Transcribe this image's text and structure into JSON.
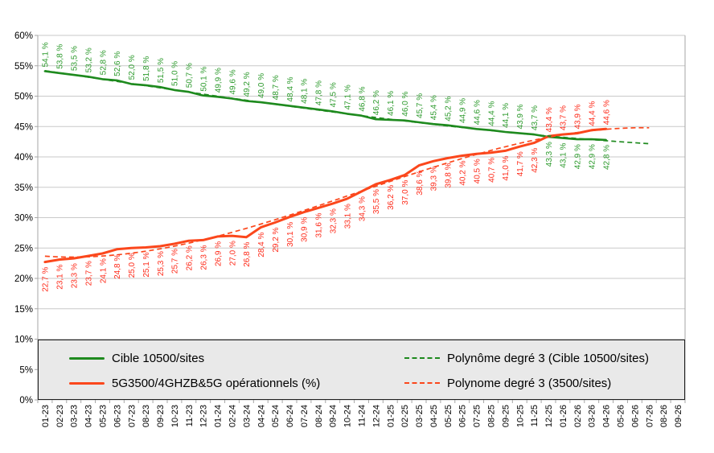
{
  "chart_data": {
    "type": "line",
    "title": "",
    "categories": [
      "01-23",
      "02-23",
      "03-23",
      "04-23",
      "05-23",
      "06-23",
      "07-23",
      "08-23",
      "09-23",
      "10-23",
      "11-23",
      "12-23",
      "01-24",
      "02-24",
      "03-24",
      "04-24",
      "05-24",
      "06-24",
      "07-24",
      "08-24",
      "09-24",
      "10-24",
      "11-24",
      "12-24",
      "01-25",
      "02-25",
      "03-25",
      "04-25",
      "05-25",
      "06-25",
      "07-25",
      "08-25",
      "09-25",
      "10-25",
      "11-25",
      "12-25",
      "01-26",
      "02-26",
      "03-26",
      "04-26",
      "05-26",
      "06-26",
      "07-26",
      "08-26",
      "09-26"
    ],
    "series": [
      {
        "name": "Cible 10500/sites",
        "color": "#1e8a1e",
        "label_color": "#2c9a2c",
        "stroke_width": 2.6,
        "label_side_start": "above",
        "label_flip_index": 35,
        "values": [
          54.1,
          53.8,
          53.5,
          53.2,
          52.8,
          52.6,
          52.0,
          51.8,
          51.5,
          51.0,
          50.7,
          50.1,
          49.9,
          49.6,
          49.2,
          49.0,
          48.7,
          48.4,
          48.1,
          47.8,
          47.5,
          47.1,
          46.8,
          46.2,
          46.1,
          46.0,
          45.7,
          45.4,
          45.2,
          44.9,
          44.6,
          44.4,
          44.1,
          43.9,
          43.7,
          43.3,
          43.1,
          42.9,
          42.9,
          42.8
        ]
      },
      {
        "name": "5G3500/4GHZB&5G opérationnels (%)",
        "color": "#fb471c",
        "label_color": "#fe2a19",
        "stroke_width": 3,
        "label_side_start": "below",
        "label_flip_index": 35,
        "values": [
          22.7,
          23.1,
          23.3,
          23.7,
          24.1,
          24.8,
          25.0,
          25.1,
          25.3,
          25.7,
          26.2,
          26.3,
          26.9,
          27.0,
          26.8,
          28.4,
          29.2,
          30.1,
          30.9,
          31.6,
          32.3,
          33.1,
          34.3,
          35.5,
          36.2,
          37.0,
          38.6,
          39.3,
          39.8,
          40.2,
          40.5,
          40.7,
          41.0,
          41.7,
          42.3,
          43.4,
          43.7,
          43.9,
          44.4,
          44.6
        ]
      }
    ],
    "trends": [
      {
        "name": "Polynôme degré 3 (Cible 10500/sites)",
        "color": "#1e8a1e",
        "source_series": 0,
        "degree": 3,
        "extend_to_index": 42
      },
      {
        "name": "Polynome degré 3 (3500/sites)",
        "color": "#fb471c",
        "source_series": 1,
        "degree": 3,
        "extend_to_index": 42
      }
    ],
    "ylim": [
      0,
      60
    ],
    "ytick_step": 5,
    "ytick_labels": [
      "0%",
      "5%",
      "10%",
      "15%",
      "20%",
      "25%",
      "30%",
      "35%",
      "40%",
      "45%",
      "50%",
      "55%",
      "60%"
    ],
    "grid": "horizontal-only",
    "legend_position": "bottom-left-box",
    "label_format": "one-decimal-comma-space-percent",
    "x_label_rotation": -90,
    "data_label_rotation": -90
  },
  "style": {
    "grid_color": "#c9c9c9",
    "axis_color": "#a6a6a6",
    "tick_label_color": "#000000",
    "legend_bg": "#e9e9e9",
    "legend_border": "#1f1f1f",
    "background": "#ffffff"
  }
}
